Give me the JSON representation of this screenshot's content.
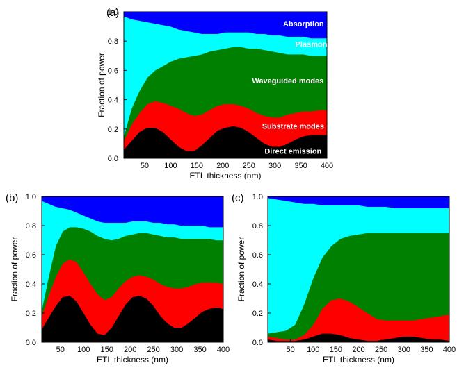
{
  "colors": {
    "direct": "#000000",
    "substrate": "#ff0000",
    "waveguided": "#008000",
    "plasmon": "#00ffff",
    "absorption": "#0000ff"
  },
  "chart_data": [
    {
      "type": "area",
      "panel_label": "(a)",
      "xlabel": "ETL thickness (nm)",
      "ylabel": "Fraction of power",
      "xlim": [
        10,
        400
      ],
      "ylim": [
        0,
        1
      ],
      "x_ticks": [
        "50",
        "100",
        "150",
        "200",
        "250",
        "300",
        "350",
        "400"
      ],
      "y_ticks": [
        "0,0",
        "0,2",
        "0,4",
        "0,6",
        "0,8",
        "1,0"
      ],
      "stacking": "cumulative boundaries from bottom",
      "x": [
        10,
        25,
        40,
        55,
        70,
        85,
        100,
        115,
        130,
        145,
        160,
        175,
        190,
        205,
        220,
        235,
        250,
        265,
        280,
        295,
        310,
        325,
        340,
        355,
        370,
        385,
        400
      ],
      "series": [
        {
          "name": "Direct emission",
          "color_key": "direct",
          "upper": [
            0.06,
            0.12,
            0.18,
            0.21,
            0.21,
            0.18,
            0.13,
            0.08,
            0.05,
            0.05,
            0.09,
            0.14,
            0.19,
            0.21,
            0.22,
            0.21,
            0.18,
            0.14,
            0.1,
            0.08,
            0.08,
            0.1,
            0.13,
            0.15,
            0.16,
            0.16,
            0.16
          ]
        },
        {
          "name": "Substrate modes",
          "color_key": "substrate",
          "upper": [
            0.12,
            0.23,
            0.31,
            0.37,
            0.39,
            0.38,
            0.36,
            0.34,
            0.31,
            0.29,
            0.3,
            0.33,
            0.36,
            0.37,
            0.37,
            0.36,
            0.34,
            0.31,
            0.29,
            0.28,
            0.28,
            0.3,
            0.31,
            0.32,
            0.32,
            0.33,
            0.33
          ]
        },
        {
          "name": "Waveguided modes",
          "color_key": "waveguided",
          "upper": [
            0.15,
            0.34,
            0.46,
            0.55,
            0.6,
            0.63,
            0.66,
            0.68,
            0.69,
            0.7,
            0.71,
            0.73,
            0.74,
            0.75,
            0.76,
            0.76,
            0.75,
            0.75,
            0.74,
            0.73,
            0.72,
            0.71,
            0.71,
            0.71,
            0.7,
            0.7,
            0.7
          ]
        },
        {
          "name": "Plasmon",
          "color_key": "plasmon",
          "upper": [
            0.97,
            0.95,
            0.94,
            0.93,
            0.92,
            0.91,
            0.9,
            0.88,
            0.87,
            0.86,
            0.85,
            0.85,
            0.85,
            0.86,
            0.86,
            0.86,
            0.86,
            0.85,
            0.85,
            0.84,
            0.84,
            0.83,
            0.83,
            0.83,
            0.82,
            0.82,
            0.82
          ]
        },
        {
          "name": "Absorption",
          "color_key": "absorption",
          "upper": [
            1,
            1,
            1,
            1,
            1,
            1,
            1,
            1,
            1,
            1,
            1,
            1,
            1,
            1,
            1,
            1,
            1,
            1,
            1,
            1,
            1,
            1,
            1,
            1,
            1,
            1,
            1
          ]
        }
      ],
      "annotations": [
        {
          "text": "Absorption",
          "color": "#ffffff",
          "x": 355,
          "y": 0.92
        },
        {
          "text": "Plasmon",
          "color": "#ffffff",
          "x": 370,
          "y": 0.78
        },
        {
          "text": "Waveguided modes",
          "color": "#ffffff",
          "x": 325,
          "y": 0.53
        },
        {
          "text": "Substrate modes",
          "color": "#ffffff",
          "x": 335,
          "y": 0.22
        },
        {
          "text": "Direct emission",
          "color": "#ffffff",
          "x": 335,
          "y": 0.05
        }
      ]
    },
    {
      "type": "area",
      "panel_label": "(b)",
      "xlabel": "ETL thickness (nm)",
      "ylabel": "Fraction of power",
      "xlim": [
        10,
        400
      ],
      "ylim": [
        0,
        1
      ],
      "x_ticks": [
        "50",
        "100",
        "150",
        "200",
        "250",
        "300",
        "350",
        "400"
      ],
      "y_ticks": [
        "0.0",
        "0.2",
        "0.4",
        "0.6",
        "0.8",
        "1.0"
      ],
      "stacking": "cumulative boundaries from bottom",
      "x": [
        10,
        25,
        40,
        55,
        70,
        85,
        100,
        115,
        130,
        145,
        160,
        175,
        190,
        205,
        220,
        235,
        250,
        265,
        280,
        295,
        310,
        325,
        340,
        355,
        370,
        385,
        400
      ],
      "series": [
        {
          "name": "",
          "color_key": "direct",
          "upper": [
            0.09,
            0.17,
            0.25,
            0.31,
            0.32,
            0.28,
            0.2,
            0.12,
            0.06,
            0.05,
            0.1,
            0.18,
            0.26,
            0.31,
            0.32,
            0.3,
            0.25,
            0.18,
            0.13,
            0.1,
            0.1,
            0.13,
            0.17,
            0.21,
            0.23,
            0.24,
            0.23
          ]
        },
        {
          "name": "",
          "color_key": "substrate",
          "upper": [
            0.18,
            0.32,
            0.45,
            0.54,
            0.57,
            0.55,
            0.48,
            0.4,
            0.33,
            0.29,
            0.31,
            0.37,
            0.42,
            0.45,
            0.46,
            0.45,
            0.43,
            0.4,
            0.38,
            0.37,
            0.37,
            0.38,
            0.4,
            0.41,
            0.41,
            0.41,
            0.4
          ]
        },
        {
          "name": "",
          "color_key": "waveguided",
          "upper": [
            0.22,
            0.45,
            0.66,
            0.76,
            0.79,
            0.79,
            0.78,
            0.76,
            0.73,
            0.71,
            0.7,
            0.71,
            0.73,
            0.74,
            0.75,
            0.75,
            0.74,
            0.73,
            0.72,
            0.72,
            0.71,
            0.71,
            0.71,
            0.71,
            0.71,
            0.7,
            0.7
          ]
        },
        {
          "name": "",
          "color_key": "plasmon",
          "upper": [
            0.97,
            0.95,
            0.93,
            0.92,
            0.91,
            0.89,
            0.87,
            0.85,
            0.83,
            0.82,
            0.82,
            0.82,
            0.82,
            0.83,
            0.83,
            0.83,
            0.82,
            0.82,
            0.81,
            0.81,
            0.8,
            0.8,
            0.8,
            0.8,
            0.79,
            0.79,
            0.79
          ]
        },
        {
          "name": "",
          "color_key": "absorption",
          "upper": [
            1,
            1,
            1,
            1,
            1,
            1,
            1,
            1,
            1,
            1,
            1,
            1,
            1,
            1,
            1,
            1,
            1,
            1,
            1,
            1,
            1,
            1,
            1,
            1,
            1,
            1,
            1
          ]
        }
      ]
    },
    {
      "type": "area",
      "panel_label": "(c)",
      "xlabel": "ETL thickness (nm)",
      "ylabel": "Fraction of power",
      "xlim": [
        0,
        400
      ],
      "ylim": [
        0,
        1
      ],
      "x_ticks": [
        "50",
        "100",
        "150",
        "200",
        "250",
        "300",
        "350",
        "400"
      ],
      "y_ticks": [
        "0.0",
        "0.2",
        "0.4",
        "0.6",
        "0.8",
        "1.0"
      ],
      "stacking": "cumulative boundaries from bottom",
      "x": [
        0,
        20,
        40,
        60,
        80,
        100,
        120,
        140,
        160,
        180,
        200,
        220,
        240,
        260,
        280,
        300,
        320,
        340,
        360,
        380,
        400
      ],
      "series": [
        {
          "name": "",
          "color_key": "direct",
          "upper": [
            0.02,
            0.01,
            0.01,
            0.01,
            0.02,
            0.04,
            0.06,
            0.06,
            0.05,
            0.03,
            0.02,
            0.01,
            0.01,
            0.02,
            0.03,
            0.04,
            0.04,
            0.03,
            0.02,
            0.02,
            0.01
          ]
        },
        {
          "name": "",
          "color_key": "substrate",
          "upper": [
            0.04,
            0.03,
            0.02,
            0.02,
            0.05,
            0.12,
            0.23,
            0.29,
            0.3,
            0.28,
            0.24,
            0.2,
            0.16,
            0.15,
            0.15,
            0.15,
            0.15,
            0.16,
            0.17,
            0.18,
            0.19
          ]
        },
        {
          "name": "",
          "color_key": "waveguided",
          "upper": [
            0.06,
            0.07,
            0.08,
            0.12,
            0.26,
            0.44,
            0.58,
            0.66,
            0.71,
            0.73,
            0.74,
            0.75,
            0.75,
            0.75,
            0.75,
            0.75,
            0.75,
            0.75,
            0.75,
            0.75,
            0.75
          ]
        },
        {
          "name": "",
          "color_key": "plasmon",
          "upper": [
            0.99,
            0.98,
            0.97,
            0.96,
            0.95,
            0.95,
            0.94,
            0.94,
            0.94,
            0.94,
            0.94,
            0.93,
            0.93,
            0.93,
            0.92,
            0.92,
            0.92,
            0.92,
            0.92,
            0.92,
            0.92
          ]
        },
        {
          "name": "",
          "color_key": "absorption",
          "upper": [
            1,
            1,
            1,
            1,
            1,
            1,
            1,
            1,
            1,
            1,
            1,
            1,
            1,
            1,
            1,
            1,
            1,
            1,
            1,
            1,
            1
          ]
        }
      ]
    }
  ]
}
